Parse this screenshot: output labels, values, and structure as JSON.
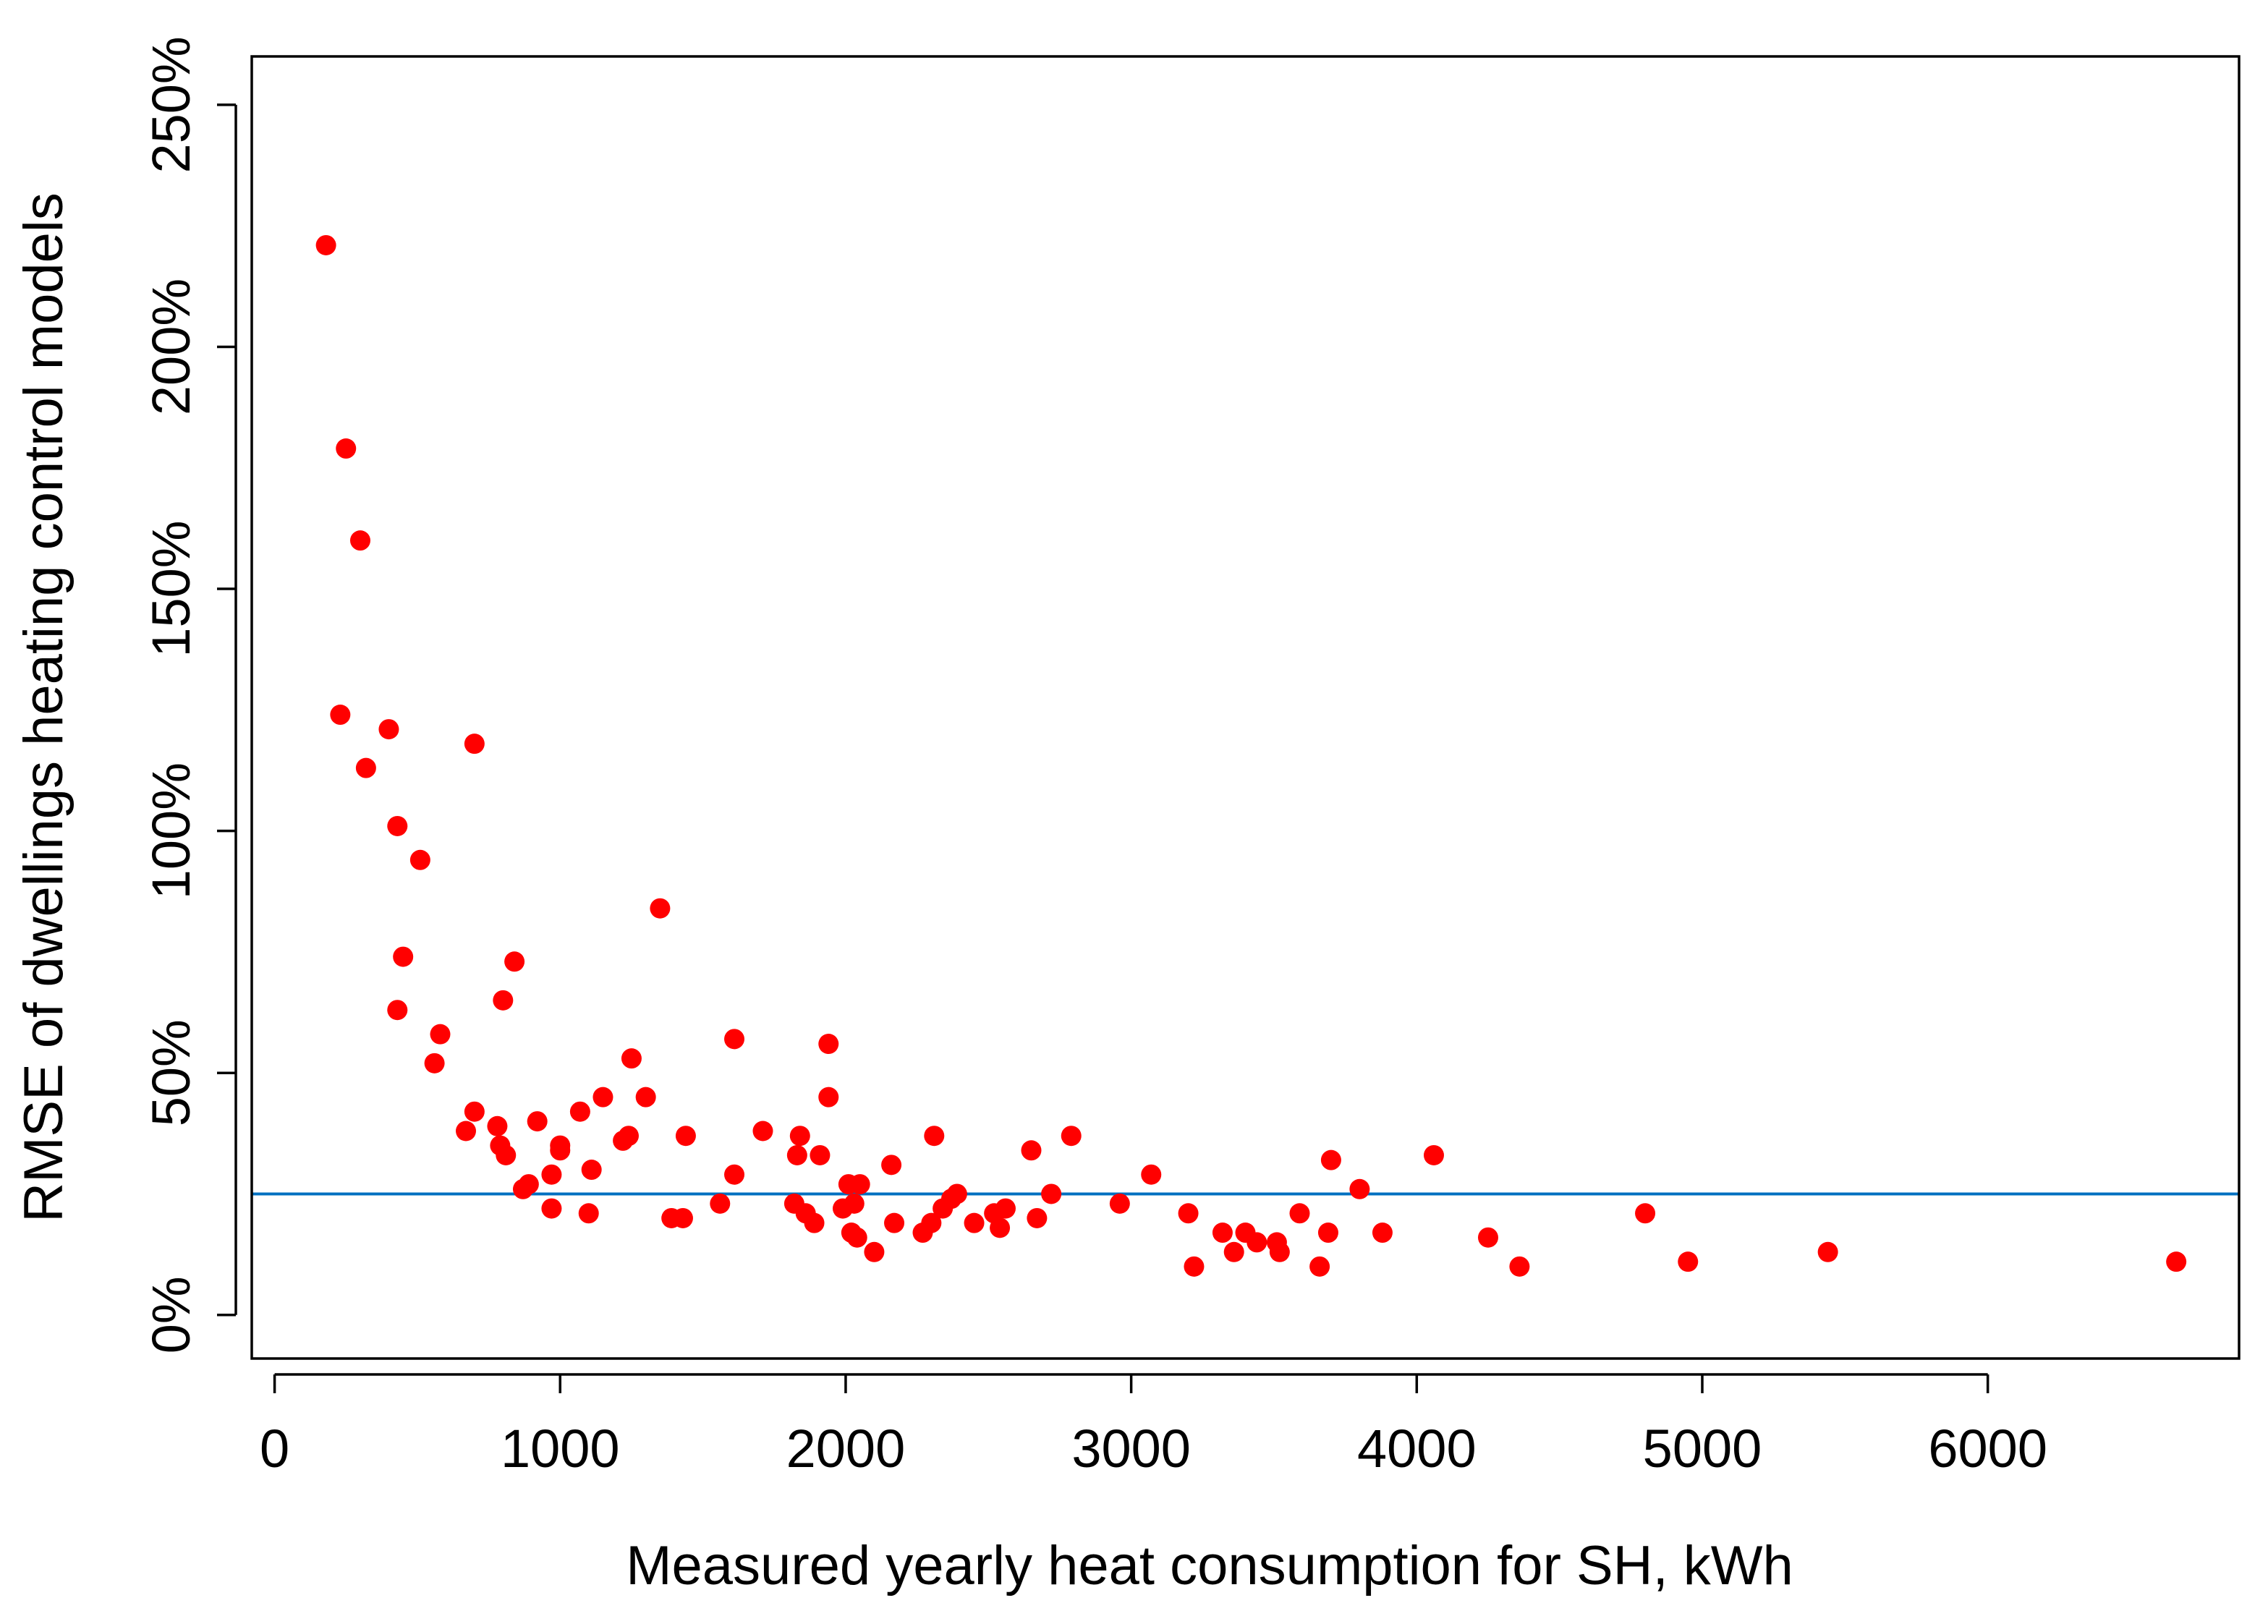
{
  "chart_data": {
    "type": "scatter",
    "title": "",
    "xlabel": "Measured yearly heat consumption for SH, kWh",
    "ylabel": "RMSE of dwellings heating control models",
    "xlim": [
      -80,
      6880
    ],
    "ylim": [
      -9,
      260
    ],
    "x_ticks": [
      0,
      1000,
      2000,
      3000,
      4000,
      5000,
      6000
    ],
    "x_tick_labels": [
      "0",
      "1000",
      "2000",
      "3000",
      "4000",
      "5000",
      "6000"
    ],
    "y_ticks": [
      0,
      50,
      100,
      150,
      200,
      250
    ],
    "y_tick_labels": [
      "0%",
      "50%",
      "100%",
      "150%",
      "200%",
      "250%"
    ],
    "y_unit": "%",
    "grid": false,
    "legend": false,
    "marker_color": "#ff0000",
    "reference_line": {
      "y": 25,
      "color": "#0070c0"
    },
    "points": [
      {
        "x": 180,
        "y": 221
      },
      {
        "x": 250,
        "y": 179
      },
      {
        "x": 300,
        "y": 160
      },
      {
        "x": 230,
        "y": 124
      },
      {
        "x": 320,
        "y": 113
      },
      {
        "x": 400,
        "y": 121
      },
      {
        "x": 430,
        "y": 101
      },
      {
        "x": 510,
        "y": 94
      },
      {
        "x": 450,
        "y": 74
      },
      {
        "x": 430,
        "y": 63
      },
      {
        "x": 580,
        "y": 58
      },
      {
        "x": 560,
        "y": 52
      },
      {
        "x": 700,
        "y": 118
      },
      {
        "x": 840,
        "y": 73
      },
      {
        "x": 800,
        "y": 65
      },
      {
        "x": 700,
        "y": 42
      },
      {
        "x": 670,
        "y": 38
      },
      {
        "x": 780,
        "y": 39
      },
      {
        "x": 790,
        "y": 35
      },
      {
        "x": 810,
        "y": 33
      },
      {
        "x": 920,
        "y": 40
      },
      {
        "x": 870,
        "y": 26
      },
      {
        "x": 890,
        "y": 27
      },
      {
        "x": 970,
        "y": 29
      },
      {
        "x": 970,
        "y": 22
      },
      {
        "x": 1000,
        "y": 35
      },
      {
        "x": 1000,
        "y": 34
      },
      {
        "x": 1070,
        "y": 42
      },
      {
        "x": 1100,
        "y": 21
      },
      {
        "x": 1110,
        "y": 30
      },
      {
        "x": 1150,
        "y": 45
      },
      {
        "x": 1220,
        "y": 36
      },
      {
        "x": 1240,
        "y": 37
      },
      {
        "x": 1250,
        "y": 53
      },
      {
        "x": 1300,
        "y": 45
      },
      {
        "x": 1350,
        "y": 84
      },
      {
        "x": 1390,
        "y": 20
      },
      {
        "x": 1430,
        "y": 20
      },
      {
        "x": 1440,
        "y": 37
      },
      {
        "x": 1560,
        "y": 23
      },
      {
        "x": 1610,
        "y": 29
      },
      {
        "x": 1610,
        "y": 57
      },
      {
        "x": 1710,
        "y": 38
      },
      {
        "x": 1820,
        "y": 23
      },
      {
        "x": 1830,
        "y": 33
      },
      {
        "x": 1840,
        "y": 37
      },
      {
        "x": 1860,
        "y": 21
      },
      {
        "x": 1890,
        "y": 19
      },
      {
        "x": 1910,
        "y": 33
      },
      {
        "x": 1940,
        "y": 56
      },
      {
        "x": 1940,
        "y": 45
      },
      {
        "x": 1990,
        "y": 22
      },
      {
        "x": 2010,
        "y": 27
      },
      {
        "x": 2020,
        "y": 17
      },
      {
        "x": 2030,
        "y": 23
      },
      {
        "x": 2040,
        "y": 16
      },
      {
        "x": 2050,
        "y": 27
      },
      {
        "x": 2100,
        "y": 13
      },
      {
        "x": 2160,
        "y": 31
      },
      {
        "x": 2170,
        "y": 19
      },
      {
        "x": 2270,
        "y": 17
      },
      {
        "x": 2300,
        "y": 19
      },
      {
        "x": 2310,
        "y": 37
      },
      {
        "x": 2340,
        "y": 22
      },
      {
        "x": 2370,
        "y": 24
      },
      {
        "x": 2390,
        "y": 25
      },
      {
        "x": 2450,
        "y": 19
      },
      {
        "x": 2520,
        "y": 21
      },
      {
        "x": 2540,
        "y": 18
      },
      {
        "x": 2560,
        "y": 22
      },
      {
        "x": 2650,
        "y": 34
      },
      {
        "x": 2670,
        "y": 20
      },
      {
        "x": 2720,
        "y": 25
      },
      {
        "x": 2790,
        "y": 37
      },
      {
        "x": 2960,
        "y": 23
      },
      {
        "x": 3070,
        "y": 29
      },
      {
        "x": 3200,
        "y": 21
      },
      {
        "x": 3220,
        "y": 10
      },
      {
        "x": 3320,
        "y": 17
      },
      {
        "x": 3360,
        "y": 13
      },
      {
        "x": 3400,
        "y": 17
      },
      {
        "x": 3440,
        "y": 15
      },
      {
        "x": 3510,
        "y": 15
      },
      {
        "x": 3520,
        "y": 13
      },
      {
        "x": 3590,
        "y": 21
      },
      {
        "x": 3660,
        "y": 10
      },
      {
        "x": 3690,
        "y": 17
      },
      {
        "x": 3700,
        "y": 32
      },
      {
        "x": 3800,
        "y": 26
      },
      {
        "x": 3880,
        "y": 17
      },
      {
        "x": 4060,
        "y": 33
      },
      {
        "x": 4250,
        "y": 16
      },
      {
        "x": 4360,
        "y": 10
      },
      {
        "x": 4800,
        "y": 21
      },
      {
        "x": 4950,
        "y": 11
      },
      {
        "x": 5440,
        "y": 13
      },
      {
        "x": 6660,
        "y": 11
      }
    ]
  }
}
